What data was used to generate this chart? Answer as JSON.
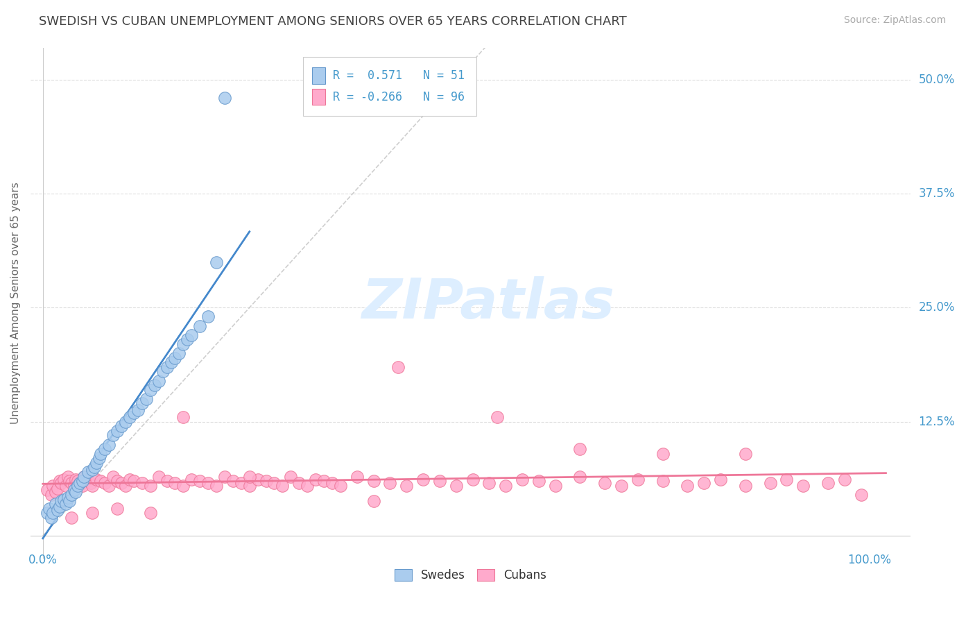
{
  "title": "SWEDISH VS CUBAN UNEMPLOYMENT AMONG SENIORS OVER 65 YEARS CORRELATION CHART",
  "source": "Source: ZipAtlas.com",
  "ylabel": "Unemployment Among Seniors over 65 years",
  "blue_face": "#aaccee",
  "blue_edge": "#6699cc",
  "pink_face": "#ffaacc",
  "pink_edge": "#ee7799",
  "blue_line": "#4488cc",
  "pink_line": "#ee7799",
  "diag_color": "#bbbbbb",
  "text_color": "#4499cc",
  "title_color": "#444444",
  "source_color": "#aaaaaa",
  "grid_color": "#dddddd",
  "watermark_color": "#ddeeff",
  "swedes_x": [
    0.005,
    0.008,
    0.01,
    0.012,
    0.015,
    0.018,
    0.02,
    0.022,
    0.025,
    0.028,
    0.03,
    0.032,
    0.035,
    0.038,
    0.04,
    0.042,
    0.045,
    0.048,
    0.05,
    0.055,
    0.06,
    0.062,
    0.065,
    0.068,
    0.07,
    0.075,
    0.08,
    0.085,
    0.09,
    0.095,
    0.1,
    0.105,
    0.11,
    0.115,
    0.12,
    0.125,
    0.13,
    0.135,
    0.14,
    0.145,
    0.15,
    0.155,
    0.16,
    0.165,
    0.17,
    0.175,
    0.18,
    0.19,
    0.2,
    0.21,
    0.22
  ],
  "swedes_y": [
    0.025,
    0.03,
    0.02,
    0.025,
    0.035,
    0.028,
    0.032,
    0.038,
    0.04,
    0.035,
    0.042,
    0.038,
    0.045,
    0.05,
    0.048,
    0.055,
    0.058,
    0.06,
    0.065,
    0.07,
    0.072,
    0.075,
    0.08,
    0.085,
    0.09,
    0.095,
    0.1,
    0.11,
    0.115,
    0.12,
    0.125,
    0.13,
    0.135,
    0.138,
    0.145,
    0.15,
    0.16,
    0.165,
    0.17,
    0.18,
    0.185,
    0.19,
    0.195,
    0.2,
    0.21,
    0.215,
    0.22,
    0.23,
    0.24,
    0.3,
    0.48
  ],
  "cubans_x": [
    0.005,
    0.01,
    0.012,
    0.015,
    0.018,
    0.02,
    0.022,
    0.025,
    0.028,
    0.03,
    0.032,
    0.035,
    0.038,
    0.04,
    0.042,
    0.045,
    0.048,
    0.05,
    0.055,
    0.058,
    0.06,
    0.065,
    0.07,
    0.075,
    0.08,
    0.085,
    0.09,
    0.095,
    0.1,
    0.105,
    0.11,
    0.12,
    0.13,
    0.14,
    0.15,
    0.16,
    0.17,
    0.18,
    0.19,
    0.2,
    0.21,
    0.22,
    0.23,
    0.24,
    0.25,
    0.26,
    0.27,
    0.28,
    0.29,
    0.3,
    0.31,
    0.32,
    0.33,
    0.34,
    0.35,
    0.36,
    0.38,
    0.4,
    0.42,
    0.44,
    0.46,
    0.48,
    0.5,
    0.52,
    0.54,
    0.56,
    0.58,
    0.6,
    0.62,
    0.65,
    0.68,
    0.7,
    0.72,
    0.75,
    0.78,
    0.8,
    0.82,
    0.85,
    0.88,
    0.9,
    0.92,
    0.95,
    0.97,
    0.99,
    0.17,
    0.43,
    0.55,
    0.65,
    0.75,
    0.85,
    0.035,
    0.06,
    0.09,
    0.13,
    0.25,
    0.4
  ],
  "cubans_y": [
    0.05,
    0.045,
    0.055,
    0.048,
    0.052,
    0.06,
    0.058,
    0.062,
    0.055,
    0.065,
    0.06,
    0.058,
    0.055,
    0.062,
    0.06,
    0.058,
    0.055,
    0.065,
    0.06,
    0.058,
    0.055,
    0.062,
    0.06,
    0.058,
    0.055,
    0.065,
    0.06,
    0.058,
    0.055,
    0.062,
    0.06,
    0.058,
    0.055,
    0.065,
    0.06,
    0.058,
    0.055,
    0.062,
    0.06,
    0.058,
    0.055,
    0.065,
    0.06,
    0.058,
    0.055,
    0.062,
    0.06,
    0.058,
    0.055,
    0.065,
    0.058,
    0.055,
    0.062,
    0.06,
    0.058,
    0.055,
    0.065,
    0.06,
    0.058,
    0.055,
    0.062,
    0.06,
    0.055,
    0.062,
    0.058,
    0.055,
    0.062,
    0.06,
    0.055,
    0.065,
    0.058,
    0.055,
    0.062,
    0.06,
    0.055,
    0.058,
    0.062,
    0.055,
    0.058,
    0.062,
    0.055,
    0.058,
    0.062,
    0.045,
    0.13,
    0.185,
    0.13,
    0.095,
    0.09,
    0.09,
    0.02,
    0.025,
    0.03,
    0.025,
    0.065,
    0.038
  ],
  "x_min": 0.0,
  "x_max": 1.0,
  "y_min": 0.0,
  "y_max": 0.5,
  "y_ticks": [
    0.0,
    0.125,
    0.25,
    0.375,
    0.5
  ],
  "y_tick_labels": [
    "",
    "12.5%",
    "25.0%",
    "37.5%",
    "50.0%"
  ],
  "legend_text_blue": "R =  0.571   N = 51",
  "legend_text_pink": "R = -0.266   N = 96"
}
